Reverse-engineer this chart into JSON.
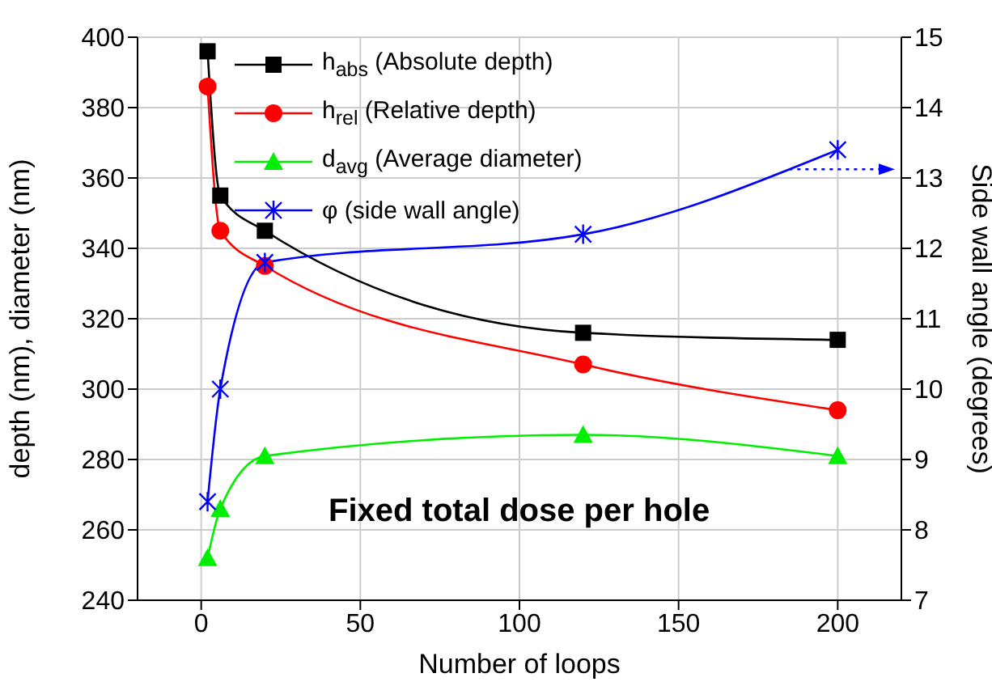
{
  "chart_data": {
    "type": "line",
    "xlabel": "Number of loops",
    "ylabel": "depth (nm), diameter (nm)",
    "y2label": "Side wall angle (degrees)",
    "x": [
      2,
      6,
      20,
      120,
      200
    ],
    "series": [
      {
        "name": "h$_{abs}$ (Absolute depth)",
        "color": "#000000",
        "marker": "square",
        "values": [
          396,
          355,
          345,
          316,
          314
        ]
      },
      {
        "name": "h$_{rel}$ (Relative depth)",
        "color": "#ff0000",
        "marker": "circle",
        "values": [
          386,
          345,
          335,
          307,
          294
        ]
      },
      {
        "name": "d$_{avg}$ (Average diameter)",
        "color": "#00ee00",
        "marker": "triangle",
        "values": [
          252,
          266,
          281,
          287,
          281
        ]
      },
      {
        "name": "φ (side wall angle)",
        "color": "#0000ff",
        "marker": "cross",
        "axis": "y2",
        "values": [
          8.4,
          10.0,
          11.8,
          12.2,
          13.4
        ]
      }
    ],
    "xlim": [
      -20,
      220
    ],
    "xticks": [
      0,
      50,
      100,
      150,
      200
    ],
    "ylim": [
      240,
      400
    ],
    "yticks": [
      240,
      260,
      280,
      300,
      320,
      340,
      360,
      380,
      400
    ],
    "y2lim": [
      7,
      15
    ],
    "y2ticks": [
      7,
      8,
      9,
      10,
      11,
      12,
      13,
      14,
      15
    ],
    "grid": true,
    "legend": "top",
    "line_style": "solid",
    "annotations": [
      "Fixed total dose per hole"
    ]
  }
}
